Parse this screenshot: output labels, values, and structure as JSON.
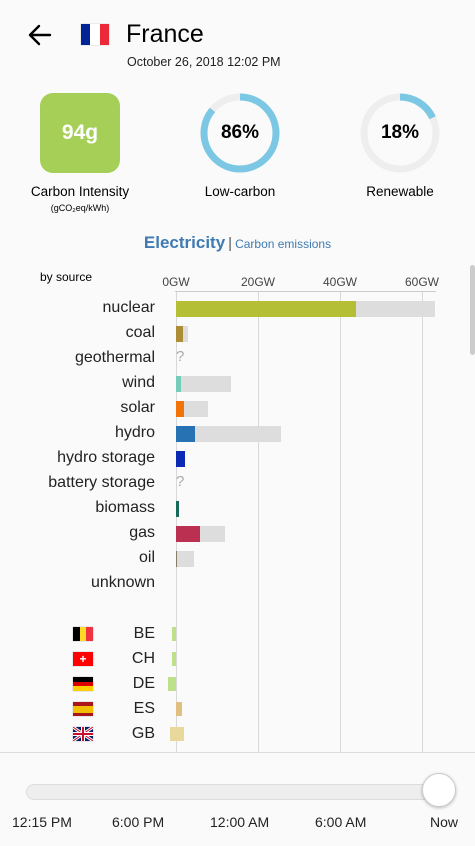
{
  "header": {
    "back_icon": "arrow-left-icon",
    "country": "France",
    "flag_colors": [
      "#002395",
      "#ffffff",
      "#ed2939"
    ],
    "timestamp": "October 26, 2018 12:02 PM"
  },
  "stats": {
    "carbon_intensity": {
      "value": "94g",
      "label": "Carbon Intensity",
      "unit": "(gCO₂eq/kWh)",
      "color": "#a6cf58"
    },
    "low_carbon": {
      "value": "86%",
      "fraction": 0.86,
      "label": "Low-carbon"
    },
    "renewable": {
      "value": "18%",
      "fraction": 0.18,
      "label": "Renewable"
    },
    "ring_color": "#7cc8e4",
    "ring_track_color": "#eeeeee"
  },
  "tabs": {
    "active": "Electricity",
    "separator": "|",
    "other": "Carbon emissions"
  },
  "chart_data": {
    "type": "bar",
    "subtitle": "by source",
    "axis_ticks": [
      "0GW",
      "20GW",
      "40GW",
      "60GW"
    ],
    "xlim": [
      0,
      63
    ],
    "sources": [
      {
        "name": "nuclear",
        "production": 44.0,
        "capacity": 63.1,
        "color": "#b5bf36"
      },
      {
        "name": "coal",
        "production": 1.8,
        "capacity": 2.9,
        "color": "#ac8c35"
      },
      {
        "name": "geothermal",
        "production": null,
        "capacity": null,
        "color": "#ffe066",
        "unknown_mark": "?"
      },
      {
        "name": "wind",
        "production": 1.2,
        "capacity": 13.5,
        "color": "#74cdb9"
      },
      {
        "name": "solar",
        "production": 2.0,
        "capacity": 7.7,
        "color": "#f27406"
      },
      {
        "name": "hydro",
        "production": 4.7,
        "capacity": 25.5,
        "color": "#2772b2"
      },
      {
        "name": "hydro storage",
        "production": 2.3,
        "capacity": null,
        "color": "#0b2ab3"
      },
      {
        "name": "battery storage",
        "production": null,
        "capacity": null,
        "color": "#b76fd4",
        "unknown_mark": "?"
      },
      {
        "name": "biomass",
        "production": 0.8,
        "capacity": null,
        "color": "#166a57"
      },
      {
        "name": "gas",
        "production": 5.8,
        "capacity": 11.9,
        "color": "#bb2f51"
      },
      {
        "name": "oil",
        "production": 0.2,
        "capacity": 4.3,
        "color": "#867d66"
      },
      {
        "name": "unknown",
        "production": 0,
        "capacity": null,
        "color": "#acacac"
      }
    ],
    "exchanges": [
      {
        "code": "BE",
        "value": -1.0,
        "color": "#bfe08a",
        "flag": [
          "#000000",
          "#fdda24",
          "#ef3340"
        ]
      },
      {
        "code": "CH",
        "value": -1.0,
        "color": "#bfe08a",
        "flag": [
          "#ff0000"
        ]
      },
      {
        "code": "DE",
        "value": -1.9,
        "color": "#bfe08a",
        "flag": [
          "#000000",
          "#dd0000",
          "#ffce00"
        ]
      },
      {
        "code": "ES",
        "value": 1.4,
        "color": "#e0c080",
        "flag": [
          "#aa151b",
          "#f1bf00",
          "#aa151b"
        ]
      },
      {
        "code": "GB",
        "value": 2.0,
        "value_min": -1.5,
        "color": "#e9d89b",
        "flag": [
          "#012169"
        ]
      }
    ]
  },
  "timeline": {
    "labels": [
      "12:15 PM",
      "6:00 PM",
      "12:00 AM",
      "6:00 AM",
      "Now"
    ],
    "position": 1.0
  }
}
